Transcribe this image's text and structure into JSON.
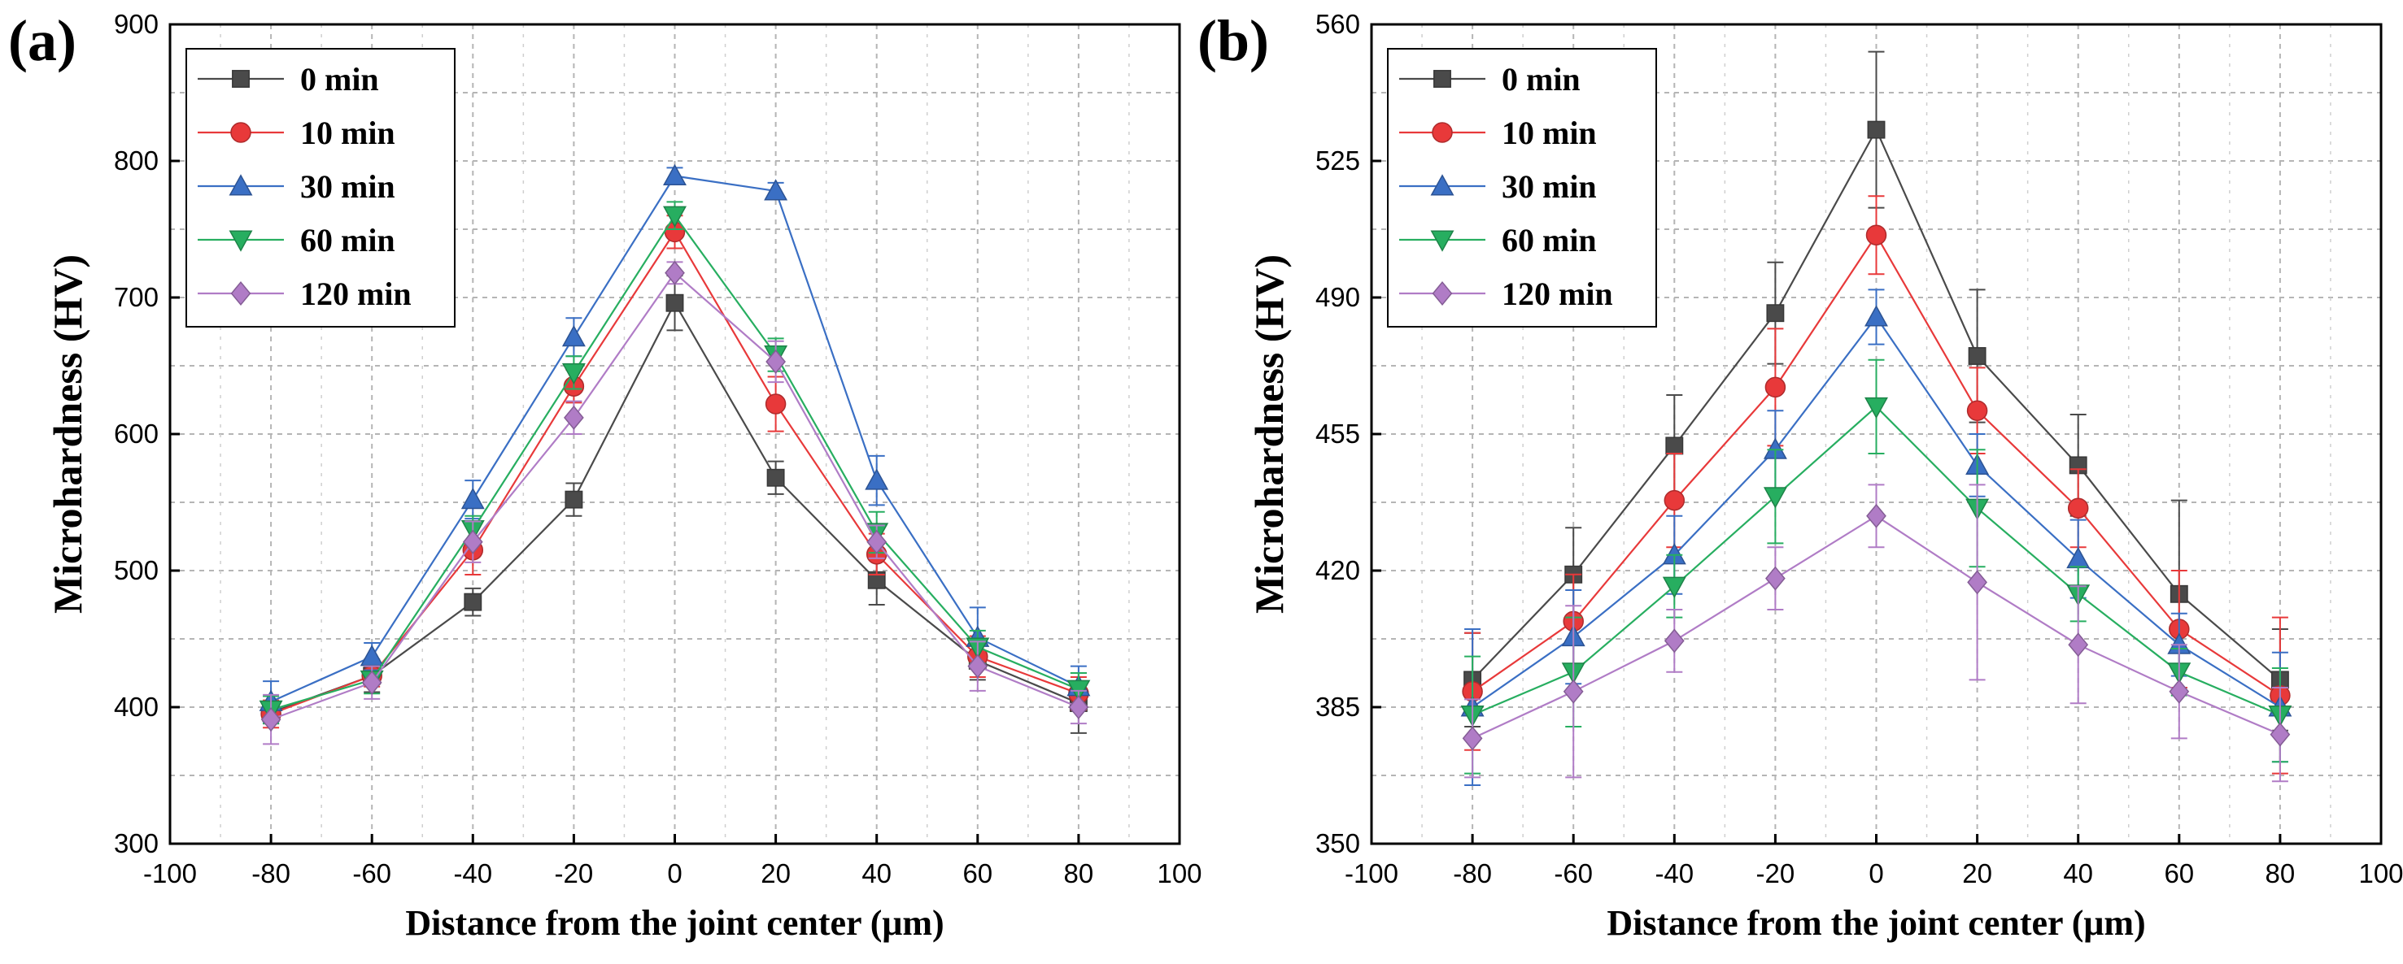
{
  "figure": {
    "colors": {
      "0 min": "#4a4a4a",
      "10 min": "#e8393a",
      "30 min": "#3a6fc4",
      "60 min": "#27ae60",
      "120 min": "#b07cc6"
    }
  },
  "chart_data": [
    {
      "panel": "(a)",
      "type": "line",
      "xlabel": "Distance from the joint center (μm)",
      "ylabel": "Microhardness (HV)",
      "xlim": [
        -100,
        100
      ],
      "ylim": [
        300,
        900
      ],
      "xticks": [
        -100,
        -80,
        -60,
        -40,
        -20,
        0,
        20,
        40,
        60,
        80,
        100
      ],
      "yticks": [
        300,
        400,
        500,
        600,
        700,
        800,
        900
      ],
      "grid": true,
      "legend_position": "top-left",
      "x": [
        -80,
        -60,
        -40,
        -20,
        0,
        20,
        40,
        60,
        80
      ],
      "series": [
        {
          "name": "0 min",
          "marker": "square",
          "values": [
            396,
            423,
            477,
            552,
            696,
            568,
            493,
            434,
            403
          ],
          "errors": [
            8,
            12,
            10,
            12,
            20,
            12,
            18,
            14,
            22
          ]
        },
        {
          "name": "10 min",
          "marker": "circle",
          "values": [
            395,
            423,
            515,
            635,
            748,
            622,
            512,
            437,
            410
          ],
          "errors": [
            10,
            8,
            18,
            12,
            12,
            20,
            15,
            15,
            12
          ]
        },
        {
          "name": "30 min",
          "marker": "triangle-up",
          "values": [
            404,
            437,
            552,
            671,
            789,
            778,
            566,
            451,
            415
          ],
          "errors": [
            15,
            10,
            14,
            14,
            6,
            6,
            18,
            22,
            15
          ]
        },
        {
          "name": "60 min",
          "marker": "triangle-down",
          "values": [
            398,
            420,
            530,
            645,
            760,
            658,
            528,
            444,
            413
          ],
          "errors": [
            10,
            10,
            10,
            12,
            10,
            12,
            15,
            12,
            12
          ]
        },
        {
          "name": "120 min",
          "marker": "diamond",
          "values": [
            391,
            418,
            521,
            612,
            718,
            653,
            521,
            430,
            400
          ],
          "errors": [
            18,
            12,
            15,
            12,
            8,
            15,
            12,
            18,
            12
          ]
        }
      ]
    },
    {
      "panel": "(b)",
      "type": "line",
      "xlabel": "Distance from the joint center (μm)",
      "ylabel": "Microhardness (HV)",
      "xlim": [
        -100,
        100
      ],
      "ylim": [
        350,
        560
      ],
      "xticks": [
        -100,
        -80,
        -60,
        -40,
        -20,
        0,
        20,
        40,
        60,
        80,
        100
      ],
      "yticks": [
        350,
        385,
        420,
        455,
        490,
        525,
        560
      ],
      "grid": true,
      "legend_position": "top-left",
      "x": [
        -80,
        -60,
        -40,
        -20,
        0,
        20,
        40,
        60,
        80
      ],
      "series": [
        {
          "name": "0 min",
          "marker": "square",
          "values": [
            392,
            419,
            452,
            486,
            533,
            475,
            447,
            414,
            392
          ],
          "errors": [
            12,
            12,
            13,
            13,
            20,
            17,
            13,
            24,
            13
          ]
        },
        {
          "name": "10 min",
          "marker": "circle",
          "values": [
            389,
            407,
            438,
            467,
            506,
            461,
            436,
            405,
            388
          ],
          "errors": [
            15,
            12,
            12,
            15,
            10,
            11,
            10,
            15,
            20
          ]
        },
        {
          "name": "30 min",
          "marker": "triangle-up",
          "values": [
            385,
            403,
            424,
            451,
            485,
            447,
            423,
            401,
            385
          ],
          "errors": [
            20,
            12,
            10,
            10,
            7,
            8,
            10,
            8,
            14
          ]
        },
        {
          "name": "60 min",
          "marker": "triangle-down",
          "values": [
            383,
            394,
            416,
            439,
            462,
            436,
            414,
            394,
            383
          ],
          "errors": [
            15,
            14,
            8,
            12,
            12,
            15,
            7,
            6,
            12
          ]
        },
        {
          "name": "120 min",
          "marker": "diamond",
          "values": [
            377,
            389,
            402,
            418,
            434,
            417,
            401,
            389,
            378
          ],
          "errors": [
            10,
            22,
            8,
            8,
            8,
            25,
            15,
            12,
            12
          ]
        }
      ]
    }
  ]
}
